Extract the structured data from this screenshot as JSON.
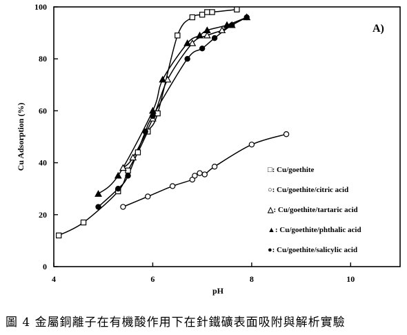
{
  "chart_data": {
    "type": "line",
    "title": "",
    "panel_label": "A)",
    "xlabel": "pH",
    "ylabel": "Cu Adsorption (%)",
    "xlim": [
      4,
      11
    ],
    "ylim": [
      0,
      100
    ],
    "xticks": [
      4,
      6,
      8,
      10
    ],
    "yticks": [
      0,
      20,
      40,
      60,
      80,
      100
    ],
    "grid": false,
    "legend_position": "bottom-right",
    "series": [
      {
        "name": "□: Cu/goethite",
        "marker": "square-open",
        "x": [
          4.1,
          4.6,
          5.3,
          5.5,
          5.7,
          5.9,
          6.1,
          6.5,
          6.8,
          7.0,
          7.1,
          7.2,
          7.7
        ],
        "y": [
          12,
          17,
          29,
          37,
          44,
          52,
          59,
          89,
          96,
          97,
          98,
          98,
          99
        ]
      },
      {
        "name": "○: Cu/goethite/citric acid",
        "marker": "circle-open",
        "x": [
          5.4,
          5.9,
          6.4,
          6.8,
          6.85,
          6.95,
          7.05,
          7.25,
          8.0,
          8.7
        ],
        "y": [
          23,
          27,
          31,
          33.5,
          35,
          36,
          35.5,
          38.5,
          47,
          51
        ]
      },
      {
        "name": "△: Cu/goethite/tartaric acid",
        "marker": "triangle-open",
        "x": [
          5.4,
          5.6,
          6.0,
          6.3,
          6.8,
          7.1,
          7.4,
          7.6,
          7.9
        ],
        "y": [
          38,
          42,
          57,
          72,
          86,
          89,
          91,
          93,
          96
        ]
      },
      {
        "name": "▲: Cu/goethite/phthalic acid",
        "marker": "triangle-filled",
        "x": [
          4.9,
          5.3,
          6.0,
          6.2,
          6.7,
          6.95,
          7.1,
          7.5,
          7.9
        ],
        "y": [
          28,
          35,
          60,
          72,
          86,
          89,
          91,
          93,
          96
        ]
      },
      {
        "name": "●: Cu/goethite/salicylic acid",
        "marker": "circle-filled",
        "x": [
          4.9,
          5.3,
          5.5,
          5.85,
          6.0,
          6.7,
          7.0,
          7.25,
          7.6,
          7.9
        ],
        "y": [
          23,
          30,
          35,
          52,
          58,
          80,
          84,
          88,
          93,
          96
        ]
      }
    ]
  },
  "caption": "圖 4  金屬銅離子在有機酸作用下在針鐵礦表面吸附與解析實驗"
}
